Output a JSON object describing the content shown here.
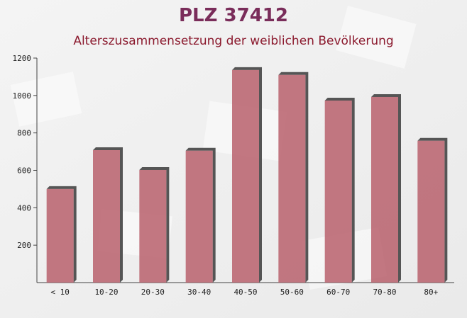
{
  "chart_data": {
    "type": "bar",
    "title": "PLZ 37412",
    "subtitle": "Alterszusammensetzung der weiblichen Bevölkerung",
    "categories": [
      "< 10",
      "10-20",
      "20-30",
      "30-40",
      "40-50",
      "50-60",
      "60-70",
      "70-80",
      "80+"
    ],
    "values": [
      500,
      708,
      602,
      705,
      1136,
      1110,
      973,
      992,
      758
    ],
    "color": "#b8606c",
    "ylim": [
      0,
      1200
    ],
    "yticks": [
      200,
      400,
      600,
      800,
      1000,
      1200
    ]
  }
}
